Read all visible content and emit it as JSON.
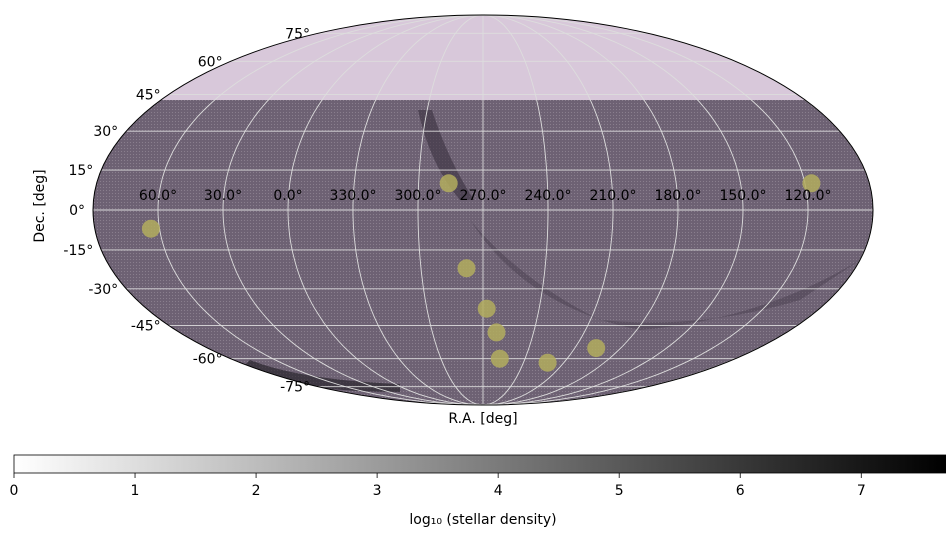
{
  "chart_data": {
    "type": "heatmap",
    "projection": "mollweide",
    "xlabel": "R.A. [deg]",
    "ylabel": "Dec. [deg]",
    "ra_tick_labels": [
      "60.0°",
      "30.0°",
      "0.0°",
      "330.0°",
      "300.0°",
      "270.0°",
      "240.0°",
      "210.0°",
      "180.0°",
      "150.0°",
      "120.0°"
    ],
    "ra_tick_values": [
      60,
      30,
      0,
      330,
      300,
      270,
      240,
      210,
      180,
      150,
      120
    ],
    "dec_tick_labels": [
      "75°",
      "60°",
      "45°",
      "30°",
      "15°",
      "0°",
      "-15°",
      "-30°",
      "-45°",
      "-60°",
      "-75°"
    ],
    "dec_tick_values": [
      75,
      60,
      45,
      30,
      15,
      0,
      -15,
      -30,
      -45,
      -60,
      -75
    ],
    "grid": true,
    "survey_dec_limit": 35,
    "colormap": "Greys",
    "colorbar": {
      "label": "log₁₀ (stellar density)",
      "range": [
        0,
        7.7
      ],
      "tick_labels": [
        "0",
        "1",
        "2",
        "3",
        "4",
        "5",
        "6",
        "7"
      ],
      "tick_values": [
        0,
        1,
        2,
        3,
        4,
        5,
        6,
        7
      ]
    },
    "highlighted_regions": [
      {
        "ra": 64,
        "dec": -7
      },
      {
        "ra": 286,
        "dec": 10
      },
      {
        "ra": 278,
        "dec": -22
      },
      {
        "ra": 268,
        "dec": -38
      },
      {
        "ra": 262,
        "dec": -48
      },
      {
        "ra": 258,
        "dec": -60
      },
      {
        "ra": 222,
        "dec": -62
      },
      {
        "ra": 196,
        "dec": -55
      },
      {
        "ra": 117,
        "dec": 10
      }
    ]
  },
  "colors": {
    "survey_fill": "#6d6173",
    "outside_fill": "#d8c8da",
    "region_fill": "#b3ad5e",
    "grid": "#dddddd",
    "outline": "#000000"
  }
}
